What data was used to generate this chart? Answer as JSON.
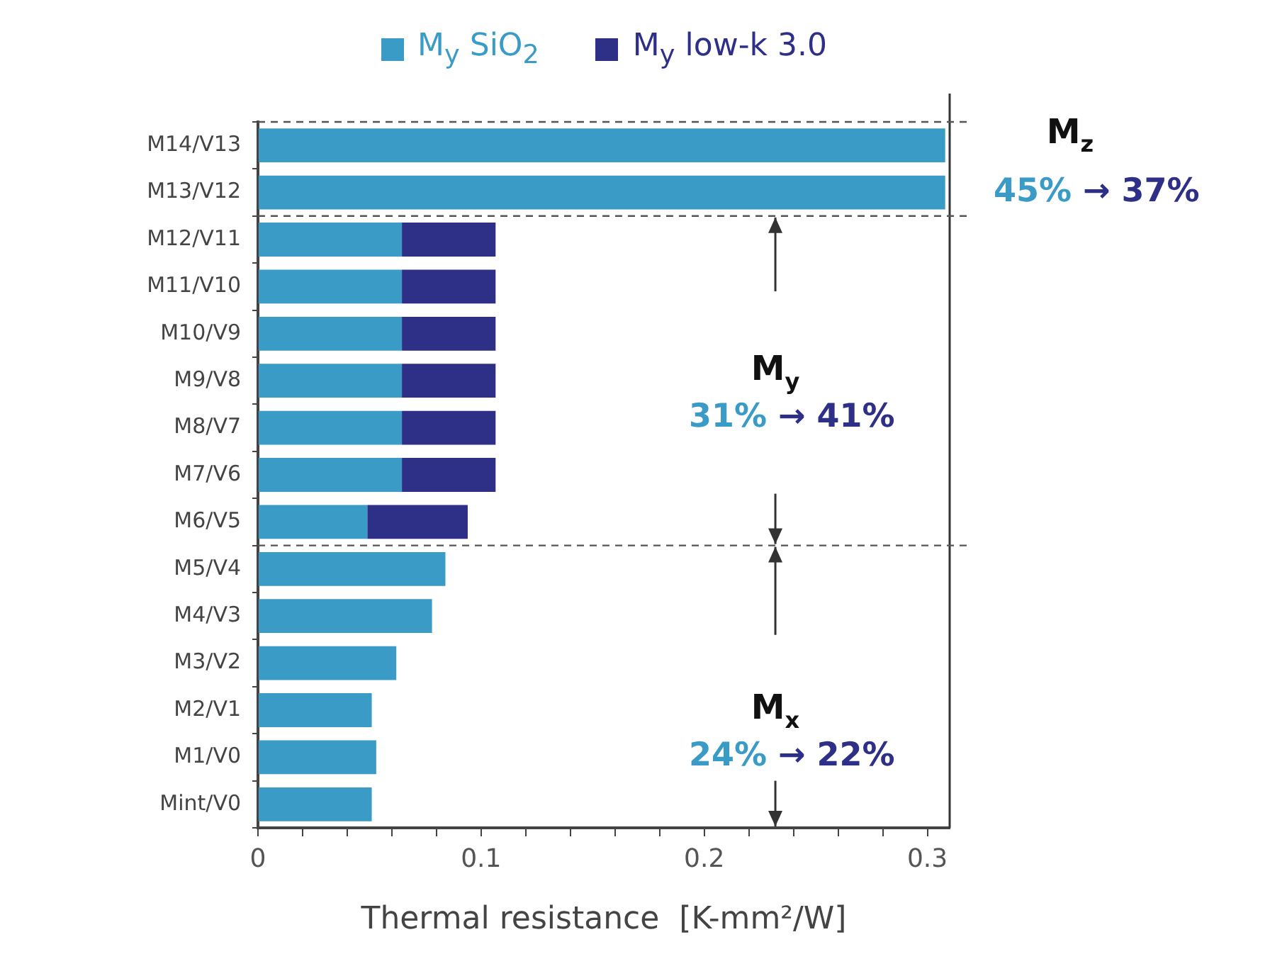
{
  "chart_data": {
    "type": "bar",
    "orientation": "horizontal",
    "stacked": true,
    "legend": "top",
    "grid": false,
    "xlabel": "Thermal resistance  [K-mm²/W]",
    "categories": [
      "M14/V13",
      "M13/V12",
      "M12/V11",
      "M11/V10",
      "M10/V9",
      "M9/V8",
      "M8/V7",
      "M7/V6",
      "M6/V5",
      "M5/V4",
      "M4/V3",
      "M3/V2",
      "M2/V1",
      "M1/V0",
      "Mint/V0"
    ],
    "series": [
      {
        "name": "M$_{y}$ SiO$_{2}$",
        "color": "#3a9cc6",
        "values": [
          0.308,
          0.308,
          0.0645,
          0.0645,
          0.0645,
          0.0645,
          0.0645,
          0.0645,
          0.049,
          0.084,
          0.078,
          0.062,
          0.051,
          0.053,
          0.051
        ]
      },
      {
        "name": "M$_{y}$ low-k 3.0",
        "color": "#2e2f86",
        "values": [
          null,
          null,
          0.042,
          0.042,
          0.042,
          0.042,
          0.042,
          0.042,
          0.045,
          null,
          null,
          null,
          null,
          null,
          null
        ]
      }
    ],
    "xlim": [
      0,
      0.31
    ],
    "xticks": [
      0,
      {
        "value": 0.02,
        "label": null
      },
      {
        "value": 0.04,
        "label": null
      },
      {
        "value": 0.06,
        "label": null
      },
      {
        "value": 0.08,
        "label": null
      },
      0.1,
      {
        "value": 0.12,
        "label": null
      },
      {
        "value": 0.14,
        "label": null
      },
      {
        "value": 0.16,
        "label": null
      },
      {
        "value": 0.18,
        "label": null
      },
      0.2,
      {
        "value": 0.22,
        "label": null
      },
      {
        "value": 0.24,
        "label": null
      },
      {
        "value": 0.26,
        "label": null
      },
      {
        "value": 0.28,
        "label": null
      },
      0.3
    ],
    "annotations": [
      "M$_{z}$",
      "45%",
      "→ 37%",
      "M$_{y}$",
      "31%",
      "→ 41%",
      "M$_{x}$",
      "24%",
      "→ 22%"
    ]
  }
}
